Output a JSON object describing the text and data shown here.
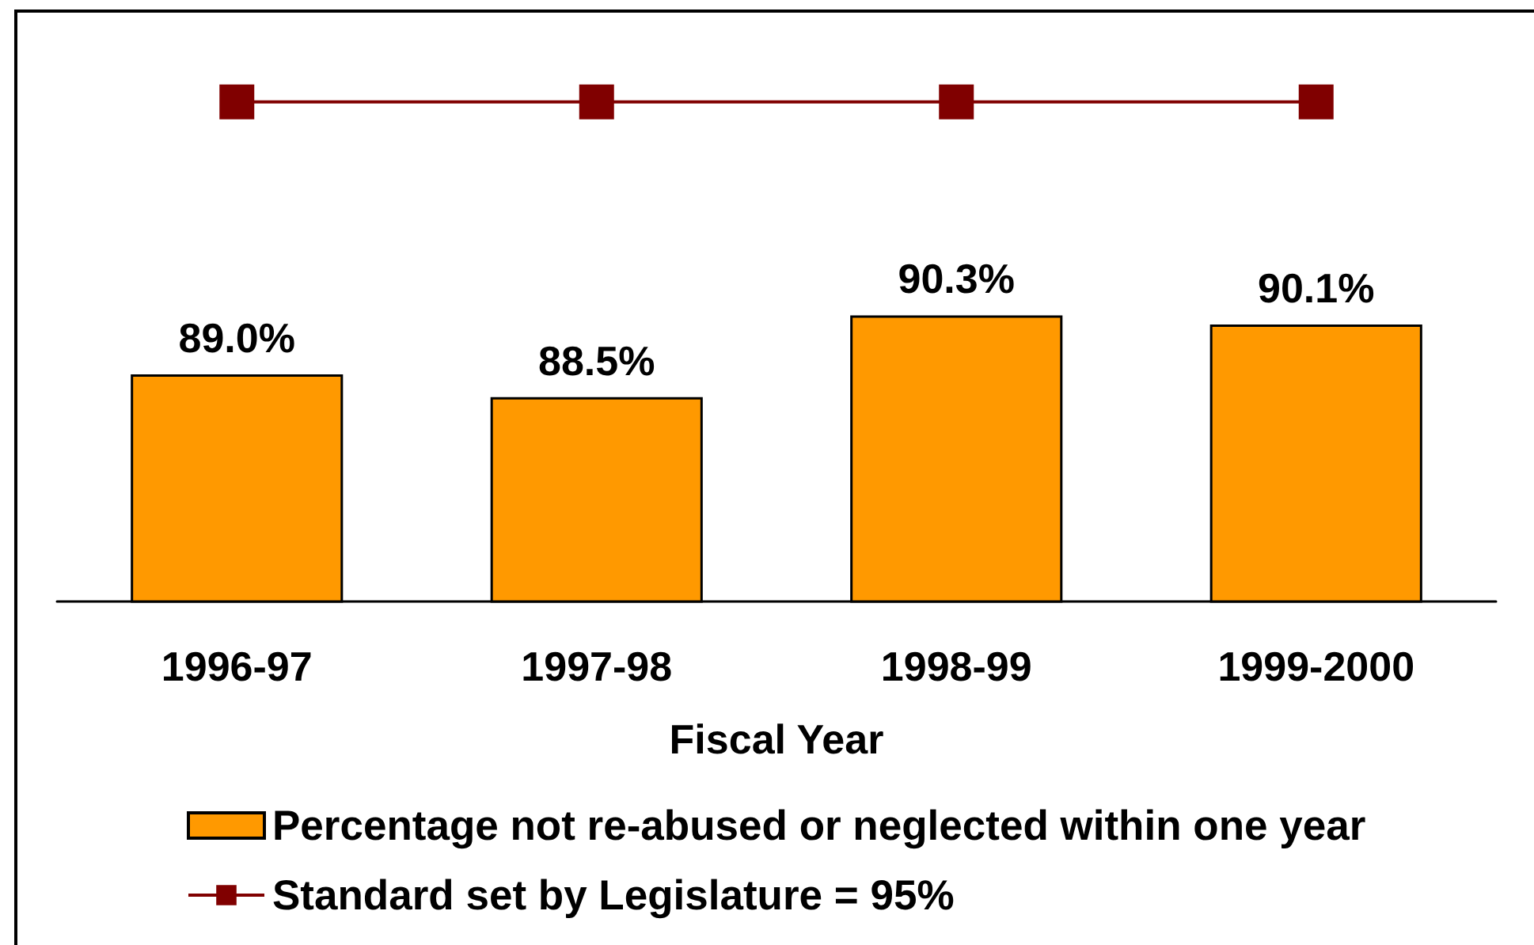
{
  "chart_data": {
    "type": "bar",
    "xlabel": "Fiscal Year",
    "categories": [
      "1996-97",
      "1997-98",
      "1998-99",
      "1999-2000"
    ],
    "series": [
      {
        "name": "Percentage not re-abused or neglected within one year",
        "color": "#ff9900",
        "values": [
          89.0,
          88.5,
          90.3,
          90.1
        ],
        "value_labels": [
          "89.0%",
          "88.5%",
          "90.3%",
          "90.1%"
        ]
      },
      {
        "name": "Standard set by Legislature = 95%",
        "type": "line",
        "color": "#800000",
        "values": [
          95,
          95,
          95,
          95
        ]
      }
    ],
    "ylim": [
      84,
      97
    ],
    "tick_labels": "x",
    "marker": "square",
    "legend": "bottom"
  }
}
